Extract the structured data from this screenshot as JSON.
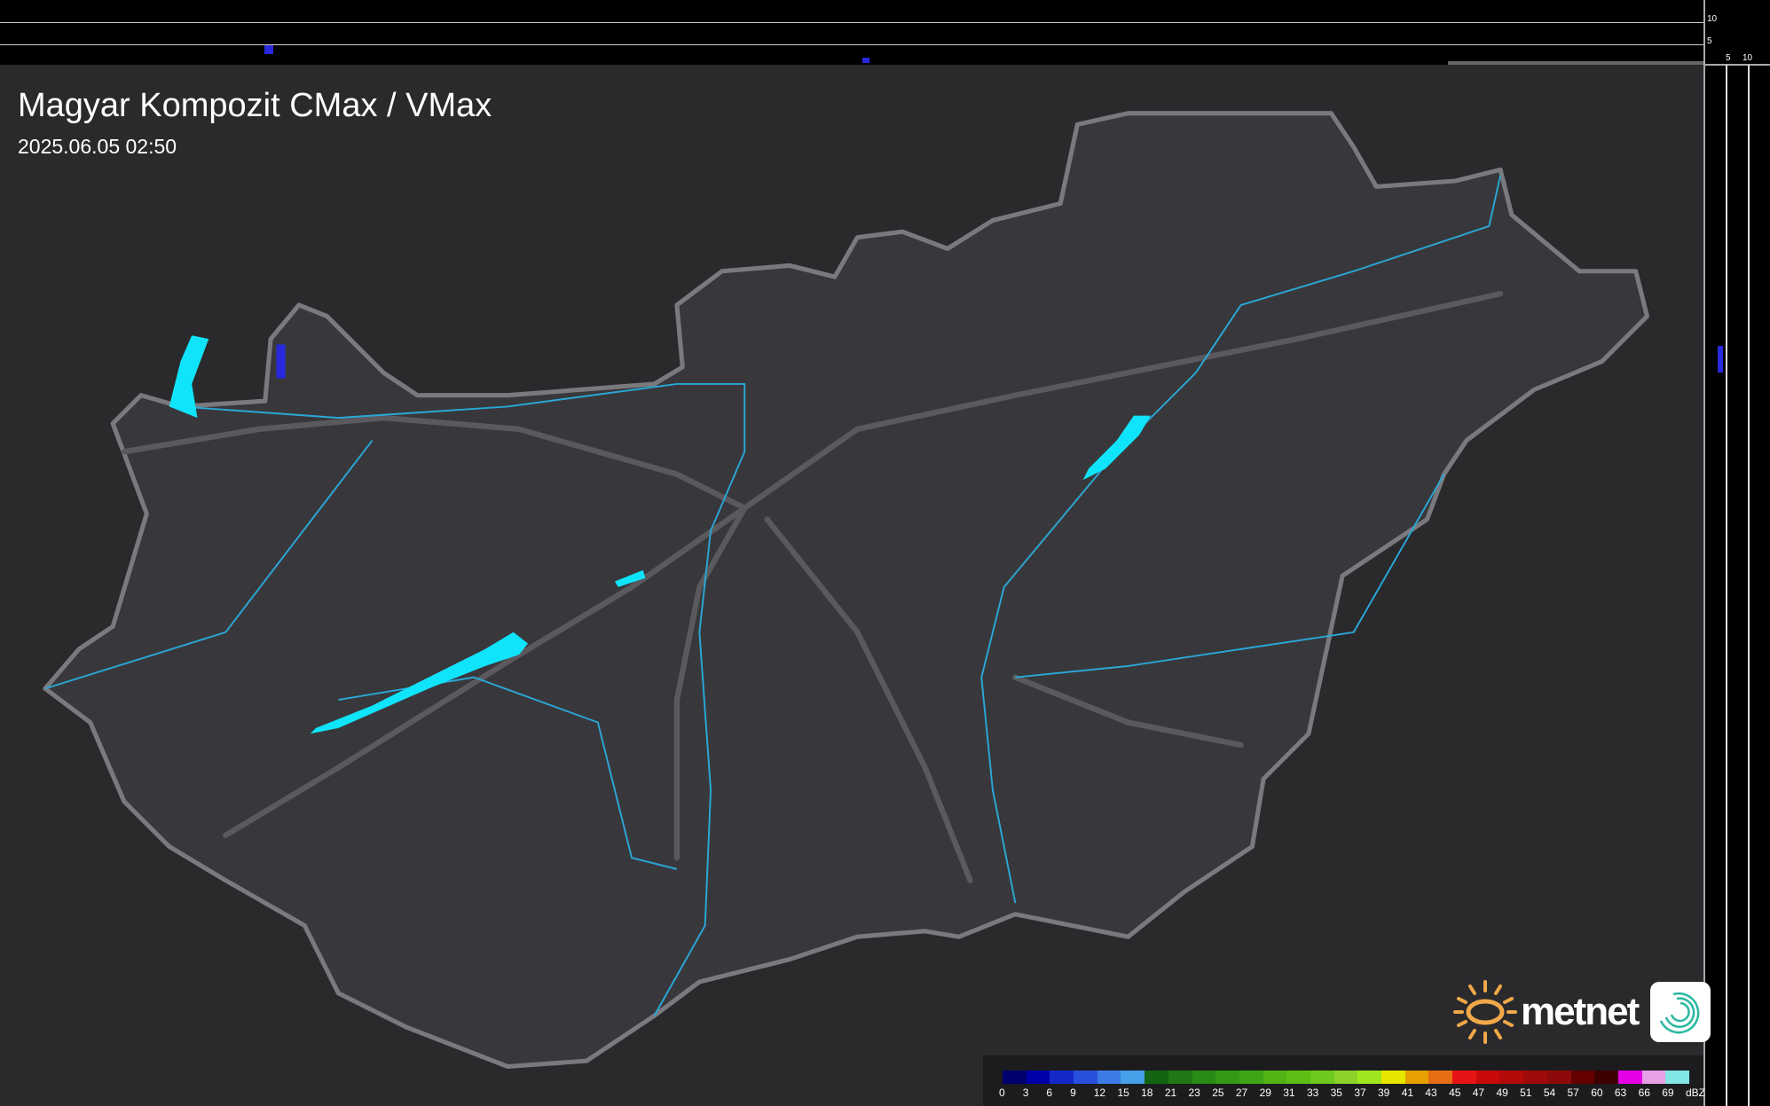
{
  "header": {
    "title": "Magyar Kompozit CMax / VMax",
    "timestamp": "2025.06.05 02:50"
  },
  "top_profile": {
    "ticks": [
      "10",
      "5"
    ]
  },
  "side_profile": {
    "ticks": [
      "5",
      "10"
    ]
  },
  "legend": {
    "unit": "dBZ",
    "labels": [
      "0",
      "3",
      "6",
      "9",
      "12",
      "15",
      "18",
      "21",
      "23",
      "25",
      "27",
      "29",
      "31",
      "33",
      "35",
      "37",
      "39",
      "41",
      "43",
      "45",
      "47",
      "49",
      "51",
      "54",
      "57",
      "60",
      "63",
      "66",
      "69"
    ],
    "colors": [
      "#00006e",
      "#0000a8",
      "#1428c8",
      "#2850dc",
      "#3c7ce6",
      "#46a0ea",
      "#146414",
      "#1e7814",
      "#288c14",
      "#329a14",
      "#3ca614",
      "#50b414",
      "#5ebe14",
      "#6ec81e",
      "#8cd228",
      "#a0e61e",
      "#e6e600",
      "#e6a000",
      "#e66e14",
      "#e61414",
      "#c80a0a",
      "#b40a0a",
      "#a00a0a",
      "#8c0a0a",
      "#640000",
      "#3c0000",
      "#e600e6",
      "#e6a0e6",
      "#82e6e6"
    ]
  },
  "logo": {
    "brand": "metnet"
  },
  "colors": {
    "background": "#2a2a2d",
    "country": "#38383c",
    "border": "#7a7a7e",
    "river": "#2aa8d8",
    "lake": "#10e4fa",
    "echo": "#2828dc"
  },
  "icons": {
    "logo": "sun-icon",
    "app": "spiral-app-icon"
  }
}
